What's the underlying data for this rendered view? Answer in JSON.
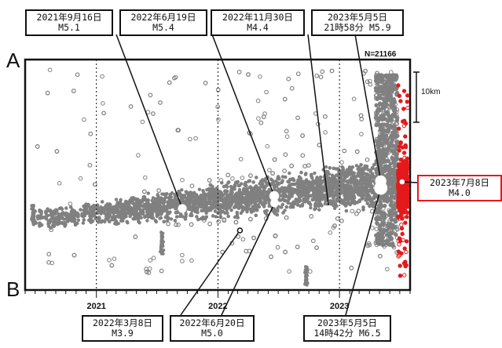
{
  "chart_data": {
    "type": "scatter",
    "count_label": "N=21166",
    "end_labels": {
      "top": "A",
      "bottom": "B"
    },
    "scale_label": "10km",
    "x_ticks": [
      "2021",
      "2022",
      "2023"
    ],
    "xlim": [
      "2020-06",
      "2023-08"
    ],
    "colors": {
      "background": "#808080",
      "recent": "#e41a1c",
      "event": "#ffffff"
    },
    "events": [
      {
        "date_label": "2021年9月16日",
        "mag_label": "M5.1",
        "date": "2021-09-16",
        "mag": 5.1
      },
      {
        "date_label": "2022年3月8日",
        "mag_label": "M3.9",
        "date": "2022-03-08",
        "mag": 3.9
      },
      {
        "date_label": "2022年6月19日",
        "mag_label": "M5.4",
        "date": "2022-06-19",
        "mag": 5.4
      },
      {
        "date_label": "2022年6月20日",
        "mag_label": "M5.0",
        "date": "2022-06-20",
        "mag": 5.0
      },
      {
        "date_label": "2022年11月30日",
        "mag_label": "M4.4",
        "date": "2022-11-30",
        "mag": 4.4
      },
      {
        "date_label": "2023年5月5日",
        "time_label": "21時58分",
        "mag_label": "M5.9",
        "date": "2023-05-05",
        "mag": 5.9
      },
      {
        "date_label": "2023年5月5日",
        "time_label": "14時42分",
        "mag_label": "M6.5",
        "date": "2023-05-05",
        "mag": 6.5
      },
      {
        "date_label": "2023年7月8日",
        "mag_label": "M4.0",
        "date": "2023-07-08",
        "mag": 4.0
      }
    ]
  }
}
